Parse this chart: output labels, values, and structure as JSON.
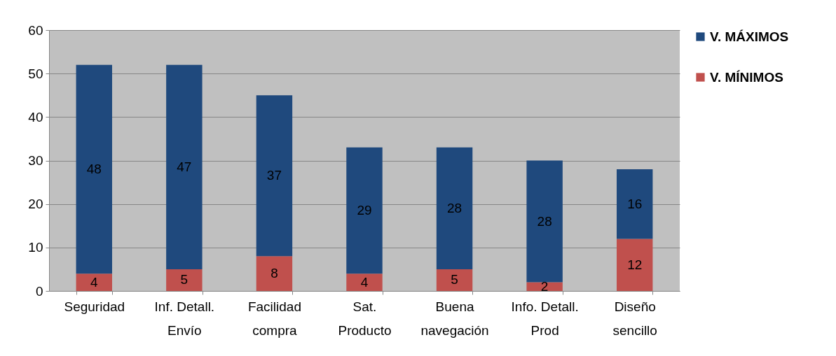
{
  "chart_data": {
    "type": "bar",
    "stacked": true,
    "categories": [
      "Seguridad",
      "Inf. Detall. Envío",
      "Facilidad compra",
      "Sat. Producto",
      "Buena navegación",
      "Info. Detall. Prod",
      "Diseño sencillo"
    ],
    "series": [
      {
        "name": "V. MÍNIMOS",
        "color": "#c0504d",
        "values": [
          4,
          5,
          8,
          4,
          5,
          2,
          12
        ]
      },
      {
        "name": "V. MÁXIMOS",
        "color": "#1f497d",
        "values": [
          48,
          47,
          37,
          29,
          28,
          28,
          16
        ]
      }
    ],
    "ylim": [
      0,
      60
    ],
    "yticks": [
      0,
      10,
      20,
      30,
      40,
      50,
      60
    ],
    "grid": "y",
    "legend": "right",
    "data_labels": true
  }
}
